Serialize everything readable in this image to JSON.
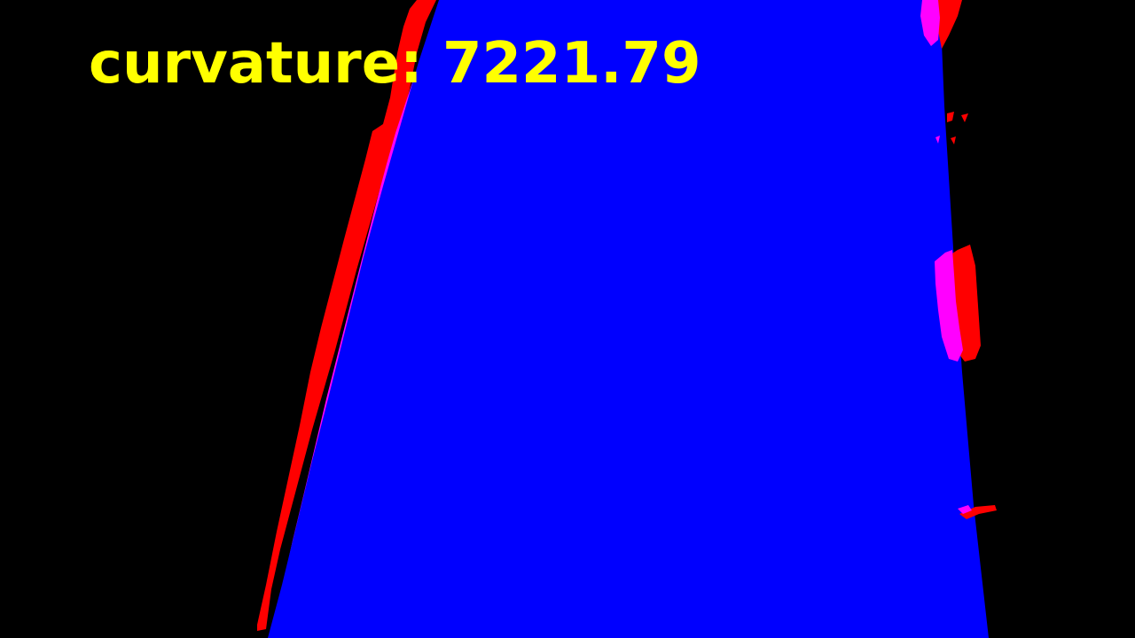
{
  "overlay": {
    "label": "curvature:",
    "value": "7221.79",
    "text_color": "#FFFF00"
  },
  "colors": {
    "background": "#000000",
    "lane_fill": "#0000FF",
    "left_line_pixels": "#FF0000",
    "right_line_pixels": "#FF0000",
    "fitted_line_overlap": "#FF00FF"
  }
}
